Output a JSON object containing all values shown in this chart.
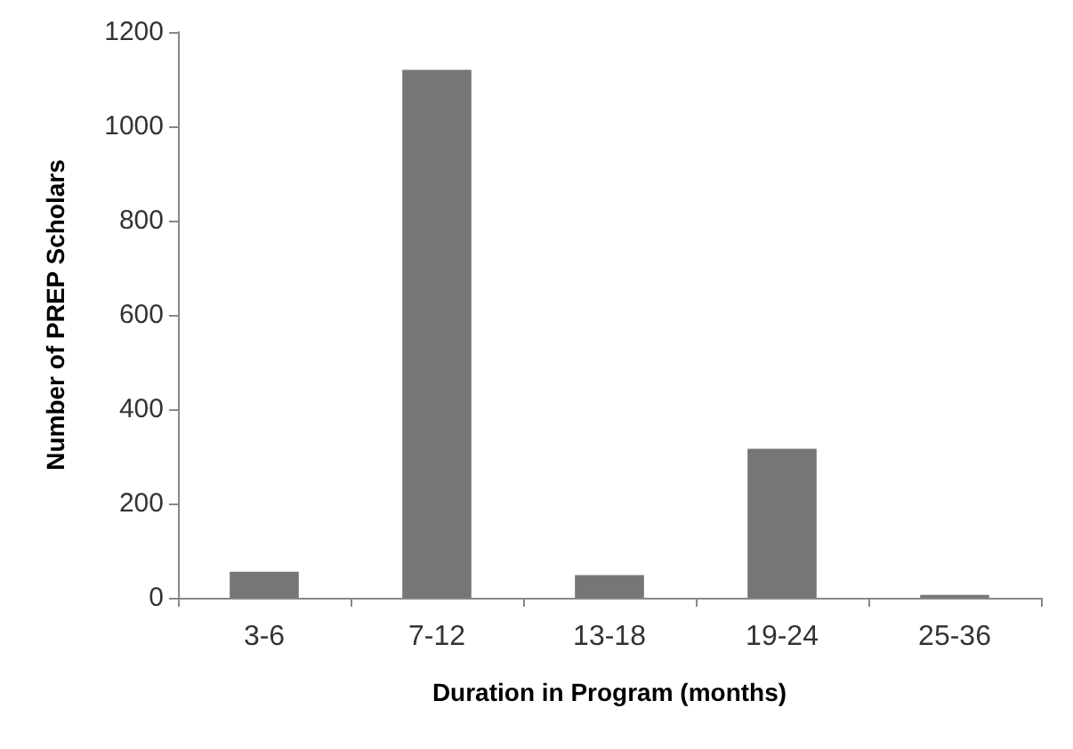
{
  "chart_data": {
    "type": "bar",
    "xlabel": "Duration in Program (months)",
    "ylabel": "Number of PREP Scholars",
    "categories": [
      "3-6",
      "7-12",
      "13-18",
      "19-24",
      "25-36"
    ],
    "values": [
      55,
      1120,
      48,
      316,
      6
    ],
    "color": "#767676",
    "ylim": [
      0,
      1200
    ],
    "yticks": [
      0,
      200,
      400,
      600,
      800,
      1000,
      1200
    ],
    "grid": false
  }
}
